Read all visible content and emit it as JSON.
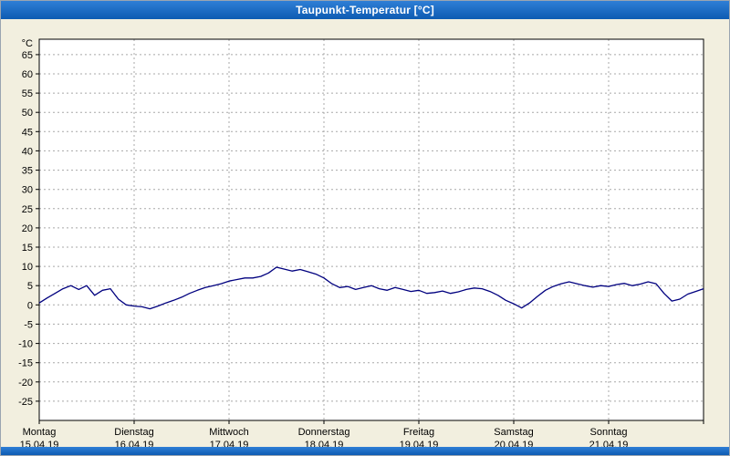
{
  "window": {
    "title": "Taupunkt-Temperatur [°C]",
    "titlebar_gradient": [
      "#2f7fd6",
      "#0d5bb2"
    ],
    "background_color": "#f2efdf"
  },
  "chart_data": {
    "type": "line",
    "title": "Taupunkt-Temperatur [°C]",
    "ylabel": "°C",
    "xlabel": "",
    "ylim": [
      -30,
      69
    ],
    "yticks": [
      65,
      60,
      55,
      50,
      45,
      40,
      35,
      30,
      25,
      20,
      15,
      10,
      5,
      0,
      -5,
      -10,
      -15,
      -20,
      -25
    ],
    "grid": "dashed",
    "legend": "none",
    "plot_bg": "#ffffff",
    "grid_color": "#a8a8a8",
    "line_color": "#00007f",
    "points_per_day": 12,
    "days": [
      {
        "label": "Montag",
        "date": "15.04.19"
      },
      {
        "label": "Dienstag",
        "date": "16.04.19"
      },
      {
        "label": "Mittwoch",
        "date": "17.04.19"
      },
      {
        "label": "Donnerstag",
        "date": "18.04.19"
      },
      {
        "label": "Freitag",
        "date": "19.04.19"
      },
      {
        "label": "Samstag",
        "date": "20.04.19"
      },
      {
        "label": "Sonntag",
        "date": "21.04.19"
      }
    ],
    "values": [
      0.5,
      1.8,
      3.0,
      4.2,
      5.0,
      4.0,
      5.0,
      2.5,
      3.8,
      4.2,
      1.5,
      0.0,
      -0.3,
      -0.5,
      -1.0,
      -0.3,
      0.5,
      1.2,
      2.0,
      3.0,
      3.8,
      4.5,
      5.0,
      5.5,
      6.2,
      6.6,
      7.0,
      7.0,
      7.4,
      8.3,
      9.8,
      9.3,
      8.8,
      9.2,
      8.6,
      8.0,
      7.0,
      5.5,
      4.5,
      4.8,
      4.0,
      4.5,
      5.0,
      4.2,
      3.8,
      4.5,
      4.0,
      3.5,
      3.8,
      3.0,
      3.2,
      3.6,
      3.0,
      3.4,
      4.0,
      4.4,
      4.2,
      3.5,
      2.5,
      1.2,
      0.3,
      -0.8,
      0.5,
      2.2,
      3.8,
      4.8,
      5.5,
      6.0,
      5.5,
      5.0,
      4.6,
      5.0,
      4.8,
      5.3,
      5.6,
      5.0,
      5.4,
      6.0,
      5.5,
      3.0,
      1.0,
      1.5,
      2.8,
      3.5,
      4.2
    ]
  }
}
